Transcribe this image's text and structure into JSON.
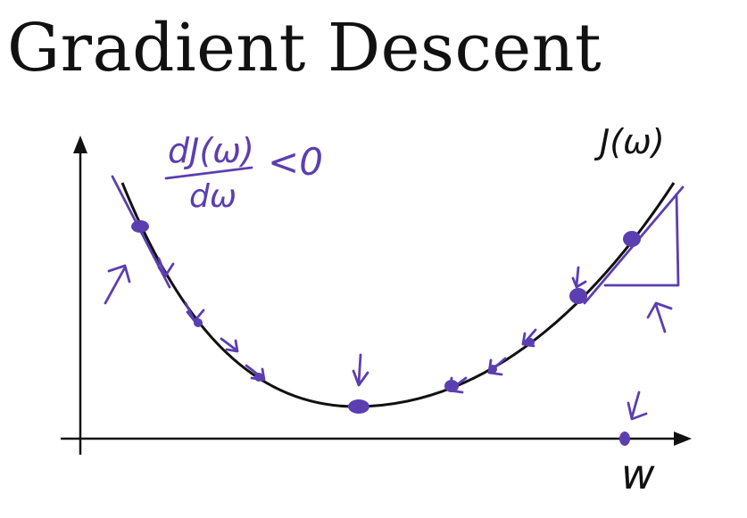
{
  "title": "Gradient Descent",
  "cost_label": "J(ω)",
  "derivative": {
    "numerator": "dJ(ω)",
    "denominator": "dω",
    "relation": "<0"
  },
  "axis_x_label": "w",
  "colors": {
    "ink": "#111111",
    "annotation": "#5b3fb0"
  }
}
